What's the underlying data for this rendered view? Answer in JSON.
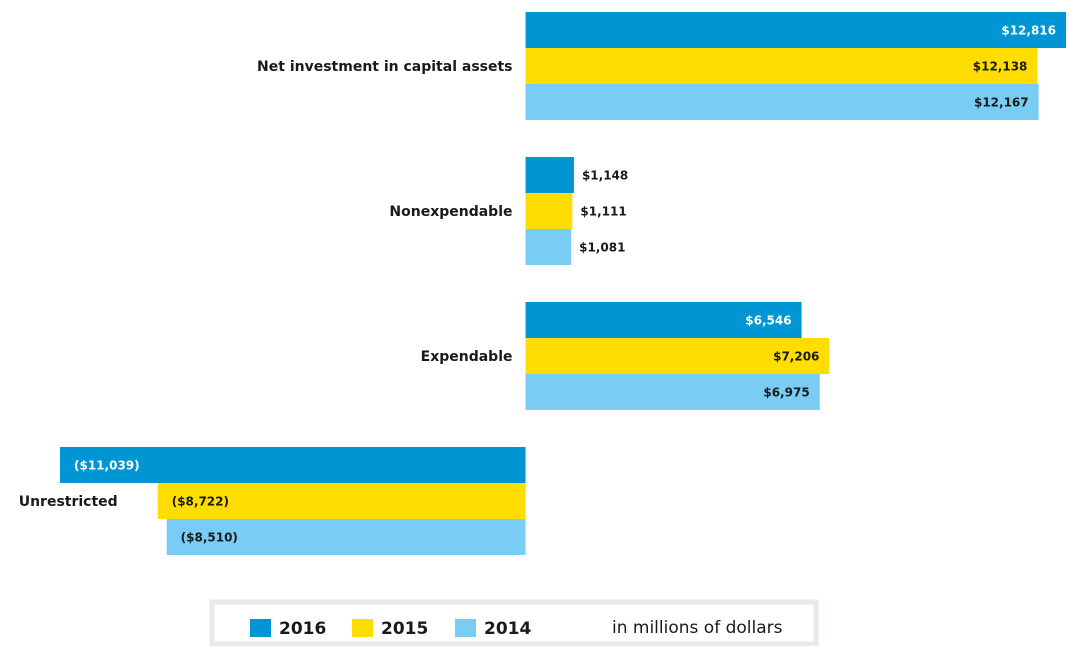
{
  "chart_data": {
    "type": "bar",
    "orientation": "horizontal",
    "categories": [
      "Net investment in capital assets",
      "Nonexpendable",
      "Expendable",
      "Unrestricted"
    ],
    "series": [
      {
        "name": "2016",
        "color": "#0095d3",
        "values": [
          12816,
          1148,
          6546,
          -11039
        ],
        "value_labels": [
          "$12,816",
          "$1,148",
          "$6,546",
          "($11,039)"
        ]
      },
      {
        "name": "2015",
        "color": "#ffdd00",
        "values": [
          12138,
          1111,
          7206,
          -8722
        ],
        "value_labels": [
          "$12,138",
          "$1,111",
          "$7,206",
          "($8,722)"
        ]
      },
      {
        "name": "2014",
        "color": "#79cdf4",
        "values": [
          12167,
          1081,
          6975,
          -8510
        ],
        "value_labels": [
          "$12,167",
          "$1,081",
          "$6,975",
          "($8,510)"
        ]
      }
    ],
    "note": "in millions of dollars"
  }
}
